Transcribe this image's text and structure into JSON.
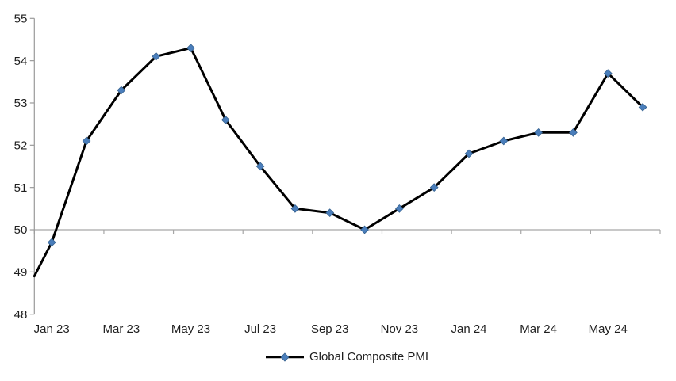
{
  "chart_data": {
    "type": "line",
    "title": "",
    "categories": [
      "Jan 23",
      "Feb 23",
      "Mar 23",
      "Apr 23",
      "May 23",
      "Jun 23",
      "Jul 23",
      "Aug 23",
      "Sep 23",
      "Oct 23",
      "Nov 23",
      "Dec 23",
      "Jan 24",
      "Feb 24",
      "Mar 24",
      "Apr 24",
      "May 24",
      "Jun 24"
    ],
    "series": [
      {
        "name": "Global Composite PMI",
        "values": [
          49.7,
          52.1,
          53.3,
          54.1,
          54.3,
          52.6,
          51.5,
          50.5,
          50.4,
          50.0,
          50.5,
          51.0,
          51.8,
          52.1,
          52.3,
          52.3,
          53.7,
          52.9
        ]
      }
    ],
    "lead_in_value_at_left_axis": 48.9,
    "ylim": [
      48,
      55
    ],
    "y_tick_labels": [
      "48",
      "49",
      "50",
      "51",
      "52",
      "53",
      "54",
      "55"
    ],
    "x_tick_labels": [
      "Jan 23",
      "Mar 23",
      "May 23",
      "Jul 23",
      "Sep 23",
      "Nov 23",
      "Jan 24",
      "Mar 24",
      "May 24"
    ],
    "x_tick_label_interval": 2,
    "x_axis_crosses_at": 50,
    "grid": "no gridlines; gray category axis line drawn at value 50 with downward tick marks",
    "legend": {
      "position": "bottom-center",
      "label": "Global Composite PMI"
    },
    "marker_shape": "diamond",
    "colors": {
      "line": "#000000",
      "marker_fill": "#4a7ebb",
      "marker_edge": "#35618f",
      "axis": "#9a9a9a",
      "reference_line": "#a6a6a6",
      "text": "#1f1f1f",
      "background": "#ffffff"
    }
  }
}
